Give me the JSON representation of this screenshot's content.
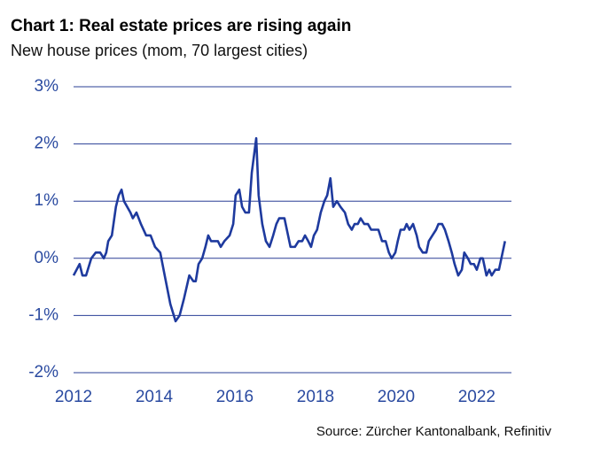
{
  "chart_data": {
    "type": "line",
    "title": "Chart 1: Real estate prices are rising again",
    "subtitle": "New house prices (mom, 70 largest cities)",
    "source": "Source: Zürcher Kantonalbank, Refinitiv",
    "xlim": [
      2012,
      2022.86
    ],
    "xticks": [
      2012,
      2014,
      2016,
      2018,
      2020,
      2022
    ],
    "ylim": [
      -2,
      3
    ],
    "yticks": [
      {
        "value": -2,
        "label": "-2%"
      },
      {
        "value": -1,
        "label": "-1%"
      },
      {
        "value": 0,
        "label": "0%"
      },
      {
        "value": 1,
        "label": "1%"
      },
      {
        "value": 2,
        "label": "2%"
      },
      {
        "value": 3,
        "label": "3%"
      }
    ],
    "grid": true,
    "series": [
      {
        "color": "#1e3a9e",
        "x": [
          2012.0,
          2012.15,
          2012.22,
          2012.31,
          2012.44,
          2012.55,
          2012.66,
          2012.75,
          2012.81,
          2012.86,
          2012.95,
          2013.05,
          2013.12,
          2013.19,
          2013.25,
          2013.41,
          2013.47,
          2013.56,
          2013.67,
          2013.8,
          2013.91,
          2014.02,
          2014.15,
          2014.26,
          2014.4,
          2014.53,
          2014.63,
          2014.74,
          2014.87,
          2014.97,
          2015.03,
          2015.1,
          2015.19,
          2015.27,
          2015.34,
          2015.41,
          2015.58,
          2015.65,
          2015.74,
          2015.87,
          2015.96,
          2016.02,
          2016.11,
          2016.18,
          2016.26,
          2016.35,
          2016.42,
          2016.53,
          2016.59,
          2016.68,
          2016.77,
          2016.86,
          2016.95,
          2017.03,
          2017.1,
          2017.23,
          2017.32,
          2017.38,
          2017.49,
          2017.58,
          2017.67,
          2017.74,
          2017.82,
          2017.89,
          2017.96,
          2018.04,
          2018.13,
          2018.22,
          2018.29,
          2018.37,
          2018.44,
          2018.53,
          2018.62,
          2018.73,
          2018.81,
          2018.9,
          2018.97,
          2019.05,
          2019.12,
          2019.21,
          2019.3,
          2019.38,
          2019.49,
          2019.56,
          2019.65,
          2019.74,
          2019.82,
          2019.89,
          2019.98,
          2020.04,
          2020.11,
          2020.2,
          2020.26,
          2020.33,
          2020.42,
          2020.51,
          2020.57,
          2020.66,
          2020.75,
          2020.81,
          2020.9,
          2020.99,
          2021.05,
          2021.14,
          2021.21,
          2021.3,
          2021.38,
          2021.45,
          2021.54,
          2021.63,
          2021.69,
          2021.78,
          2021.85,
          2021.93,
          2022.0,
          2022.09,
          2022.15,
          2022.24,
          2022.31,
          2022.37,
          2022.46,
          2022.55,
          2022.64,
          2022.7
        ],
        "values": [
          -0.3,
          -0.1,
          -0.3,
          -0.3,
          0,
          0.1,
          0.1,
          0,
          0.1,
          0.3,
          0.4,
          0.9,
          1.1,
          1.2,
          1.0,
          0.8,
          0.7,
          0.8,
          0.6,
          0.4,
          0.4,
          0.2,
          0.1,
          -0.3,
          -0.8,
          -1.1,
          -1.0,
          -0.7,
          -0.3,
          -0.4,
          -0.4,
          -0.1,
          0,
          0.2,
          0.4,
          0.3,
          0.3,
          0.2,
          0.3,
          0.4,
          0.6,
          1.1,
          1.2,
          0.9,
          0.8,
          0.8,
          1.5,
          2.1,
          1.1,
          0.6,
          0.3,
          0.2,
          0.4,
          0.6,
          0.7,
          0.7,
          0.4,
          0.2,
          0.2,
          0.3,
          0.3,
          0.4,
          0.3,
          0.2,
          0.4,
          0.5,
          0.8,
          1.0,
          1.1,
          1.4,
          0.9,
          1.0,
          0.9,
          0.8,
          0.6,
          0.5,
          0.6,
          0.6,
          0.7,
          0.6,
          0.6,
          0.5,
          0.5,
          0.5,
          0.3,
          0.3,
          0.1,
          0,
          0.1,
          0.3,
          0.5,
          0.5,
          0.6,
          0.5,
          0.6,
          0.4,
          0.2,
          0.1,
          0.1,
          0.3,
          0.4,
          0.5,
          0.6,
          0.6,
          0.5,
          0.3,
          0.1,
          -0.1,
          -0.3,
          -0.2,
          0.1,
          0,
          -0.1,
          -0.1,
          -0.2,
          0,
          0,
          -0.3,
          -0.2,
          -0.3,
          -0.2,
          -0.2,
          0.1,
          0.3
        ]
      }
    ]
  }
}
